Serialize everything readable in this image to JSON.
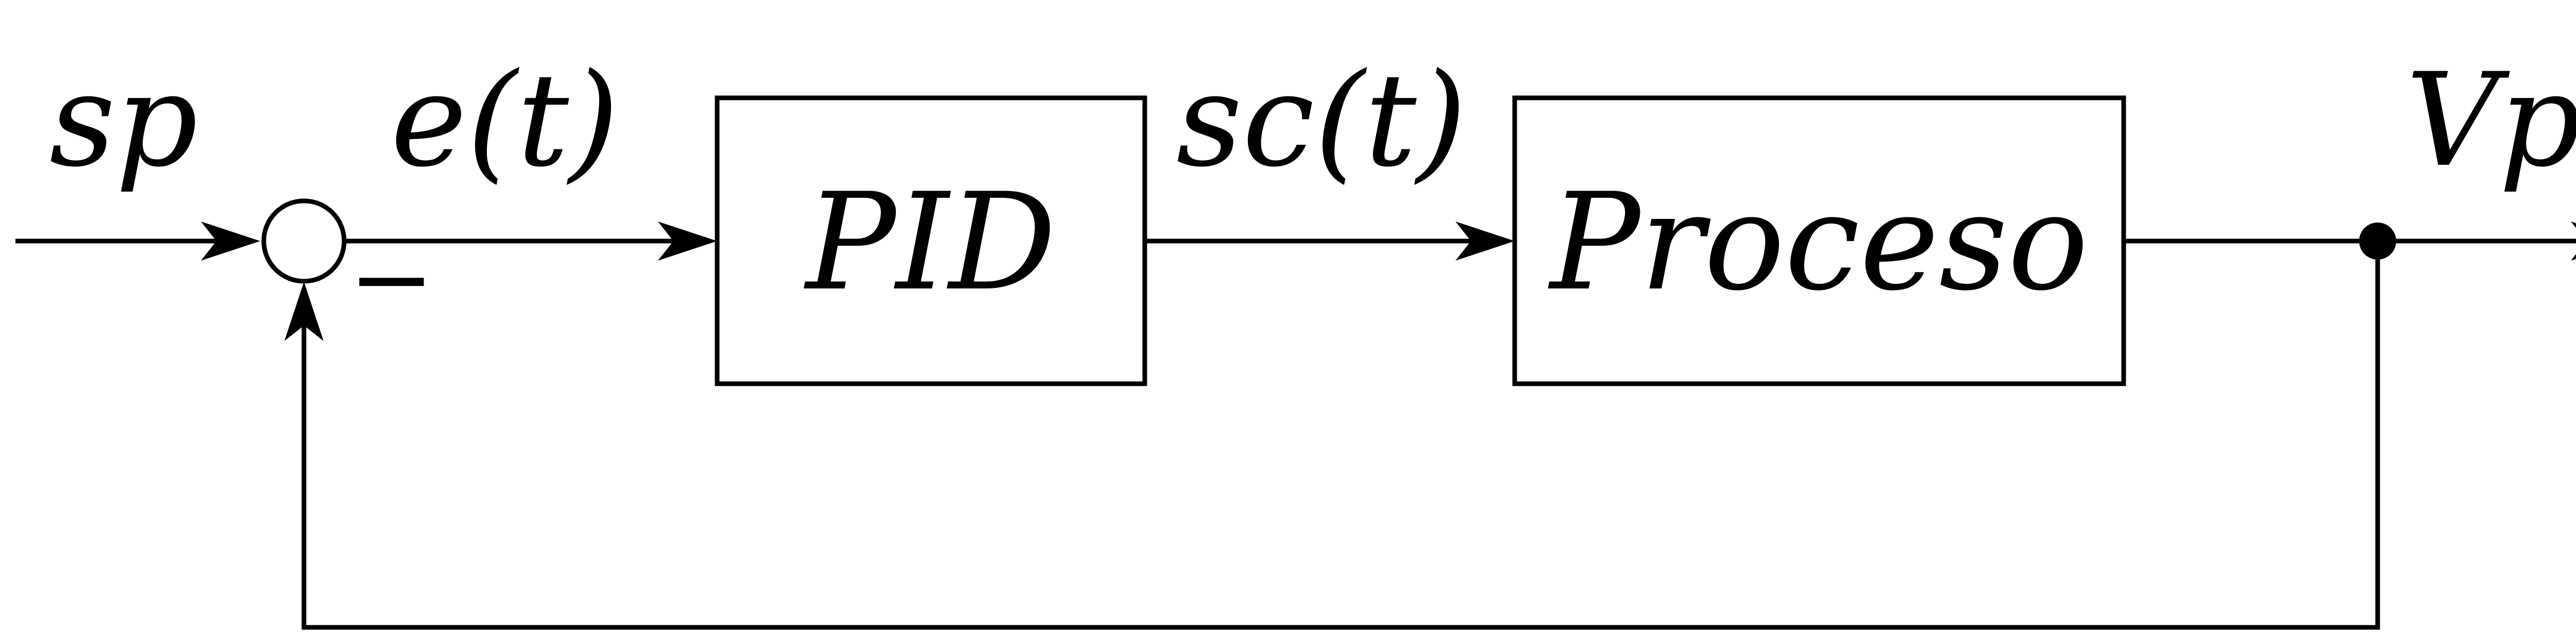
{
  "labels": {
    "setpoint": "sp",
    "error": "e(t)",
    "control_signal": "sc(t)",
    "output": "Vp",
    "feedback_sign": "−"
  },
  "blocks": {
    "controller": "PID",
    "process": "Proceso"
  }
}
